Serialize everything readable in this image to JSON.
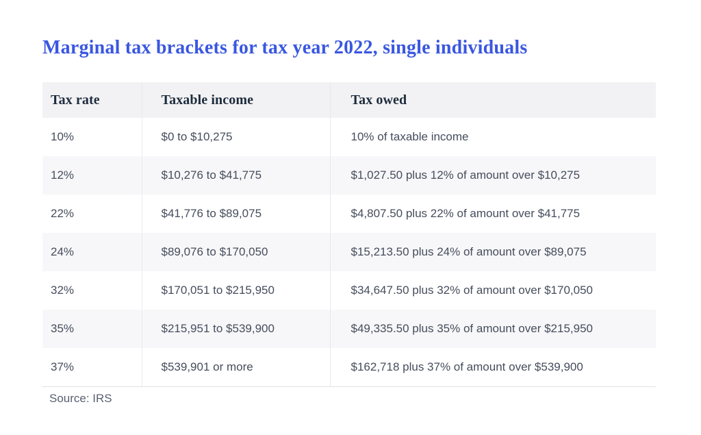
{
  "chart_data": {
    "type": "table",
    "title": "Marginal tax brackets for tax year 2022, single individuals",
    "columns": [
      "Tax rate",
      "Taxable income",
      "Tax owed"
    ],
    "rows": [
      [
        "10%",
        "$0 to $10,275",
        "10% of taxable income"
      ],
      [
        "12%",
        "$10,276 to $41,775",
        "$1,027.50 plus 12% of amount over $10,275"
      ],
      [
        "22%",
        "$41,776 to $89,075",
        "$4,807.50 plus 22% of amount over $41,775"
      ],
      [
        "24%",
        "$89,076 to $170,050",
        "$15,213.50 plus 24% of amount over $89,075"
      ],
      [
        "32%",
        "$170,051 to $215,950",
        "$34,647.50 plus 32% of amount over $170,050"
      ],
      [
        "35%",
        "$215,951 to $539,900",
        "$49,335.50 plus 35% of amount over $215,950"
      ],
      [
        "37%",
        "$539,901 or more",
        "$162,718 plus 37% of amount over $539,900"
      ]
    ],
    "source": "Source: IRS",
    "layout": "striped-rows, column dividers, no outer border"
  },
  "colors": {
    "title_blue": "#3A57E0",
    "header_bg": "#F2F2F4",
    "stripe_bg": "#F7F7F9",
    "header_text": "#1D2B3C",
    "body_text": "#454D5C",
    "divider": "#E8E9EC",
    "source_text": "#596170"
  }
}
